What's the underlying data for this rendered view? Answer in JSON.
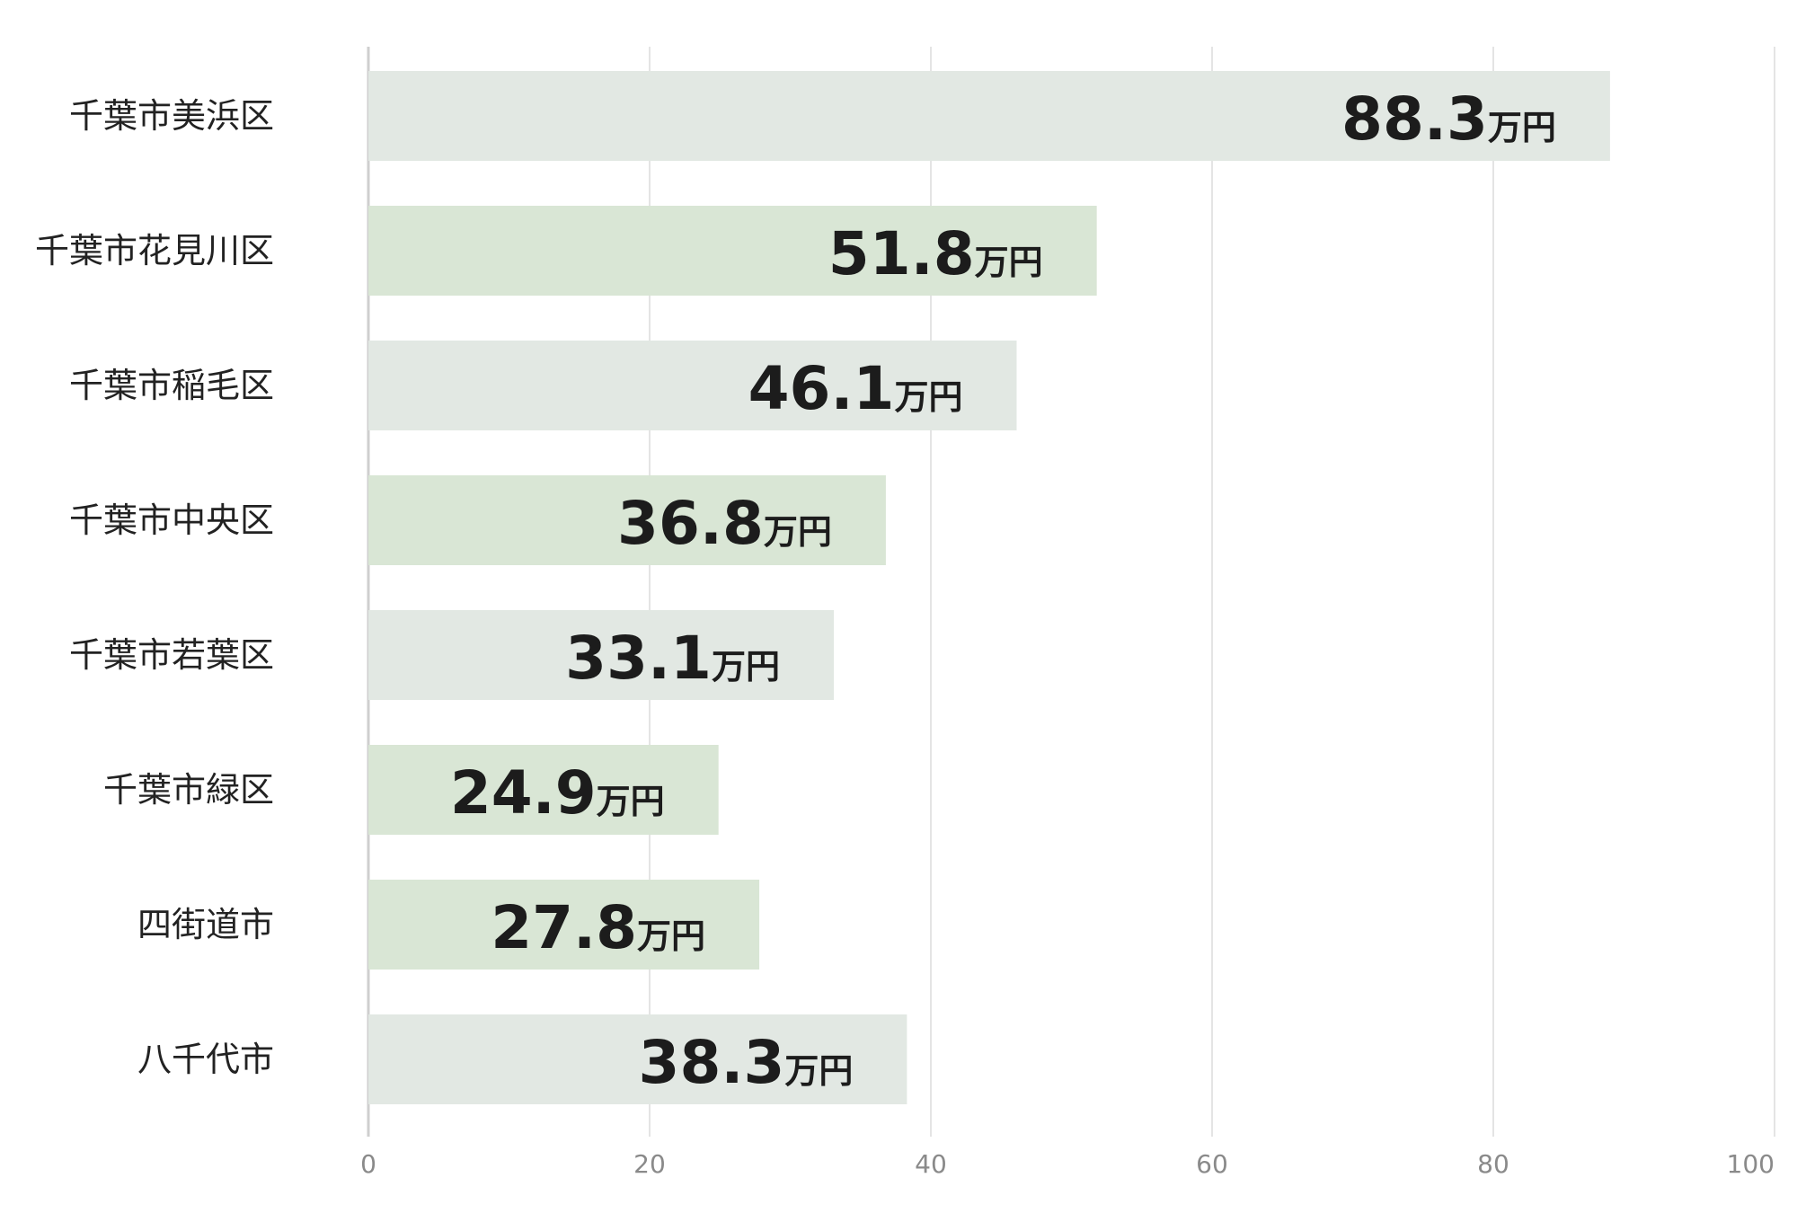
{
  "chart_data": {
    "type": "bar",
    "orientation": "horizontal",
    "categories": [
      "千葉市美浜区",
      "千葉市花見川区",
      "千葉市稲毛区",
      "千葉市中央区",
      "千葉市若葉区",
      "千葉市緑区",
      "四街道市",
      "八千代市"
    ],
    "values": [
      88.3,
      51.8,
      46.1,
      36.8,
      33.1,
      24.9,
      27.8,
      38.3
    ],
    "value_unit": "万円",
    "xlim": [
      0,
      100
    ],
    "xticks": [
      0,
      20,
      40,
      60,
      80,
      100
    ],
    "grid": true,
    "colors": {
      "gray": "#e2e8e3",
      "green": "#d9e6d5",
      "grid": "#dcdcdc",
      "axis": "#cfcfcf"
    },
    "bar_colors": [
      "gray",
      "green",
      "gray",
      "green",
      "gray",
      "green",
      "green",
      "gray"
    ]
  }
}
